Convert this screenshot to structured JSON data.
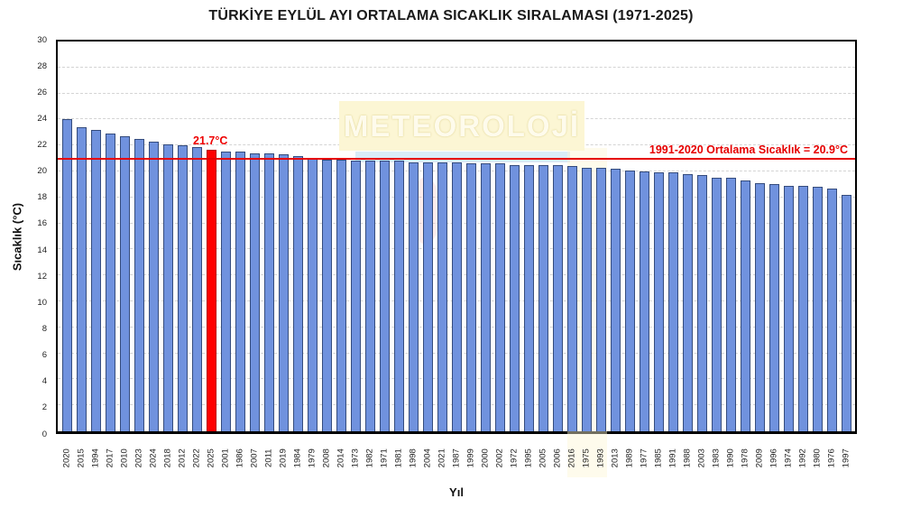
{
  "title": "TÜRKİYE EYLÜL AYI ORTALAMA SICAKLIK SIRALAMASI (1971-2025)",
  "watermark": {
    "text": "METEOROLOJİ"
  },
  "chart_data": {
    "type": "bar",
    "title": "TÜRKİYE EYLÜL AYI ORTALAMA SICAKLIK SIRALAMASI (1971-2025)",
    "xlabel": "Yıl",
    "ylabel": "Sıcaklık (°C)",
    "ylim": [
      0,
      30
    ],
    "yticks": [
      0,
      2,
      4,
      6,
      8,
      10,
      12,
      14,
      16,
      18,
      20,
      22,
      24,
      26,
      28,
      30
    ],
    "grid": true,
    "legend": "none",
    "categories": [
      "2020",
      "2015",
      "1994",
      "2017",
      "2010",
      "2023",
      "2024",
      "2018",
      "2012",
      "2022",
      "2025",
      "2001",
      "1986",
      "2007",
      "2011",
      "2019",
      "1984",
      "1979",
      "2008",
      "2014",
      "1973",
      "1982",
      "1971",
      "1981",
      "1998",
      "2004",
      "2021",
      "1987",
      "1999",
      "2000",
      "2002",
      "1972",
      "1995",
      "2005",
      "2006",
      "2016",
      "1975",
      "1993",
      "2013",
      "1989",
      "1977",
      "1985",
      "1991",
      "1988",
      "2003",
      "1983",
      "1990",
      "1978",
      "2009",
      "1996",
      "1974",
      "1992",
      "1980",
      "1976",
      "1997"
    ],
    "values": [
      24.0,
      23.4,
      23.2,
      22.9,
      22.7,
      22.5,
      22.3,
      22.1,
      22.0,
      21.9,
      21.7,
      21.5,
      21.5,
      21.4,
      21.4,
      21.3,
      21.2,
      21.0,
      20.9,
      20.9,
      20.8,
      20.8,
      20.8,
      20.8,
      20.7,
      20.7,
      20.7,
      20.7,
      20.6,
      20.6,
      20.6,
      20.5,
      20.5,
      20.5,
      20.5,
      20.4,
      20.3,
      20.3,
      20.2,
      20.1,
      20.0,
      19.9,
      19.9,
      19.8,
      19.7,
      19.5,
      19.5,
      19.3,
      19.1,
      19.0,
      18.9,
      18.9,
      18.8,
      18.7,
      18.2
    ],
    "highlight": {
      "category": "2025",
      "value": 21.7,
      "value_label": "21.7°C",
      "color": "#ff0000"
    },
    "reference_line": {
      "value": 20.9,
      "label": "1991-2020 Ortalama Sıcaklık = 20.9°C",
      "color": "#e60000"
    },
    "bar_color": "#7092de",
    "background_color": "#ffffff"
  }
}
